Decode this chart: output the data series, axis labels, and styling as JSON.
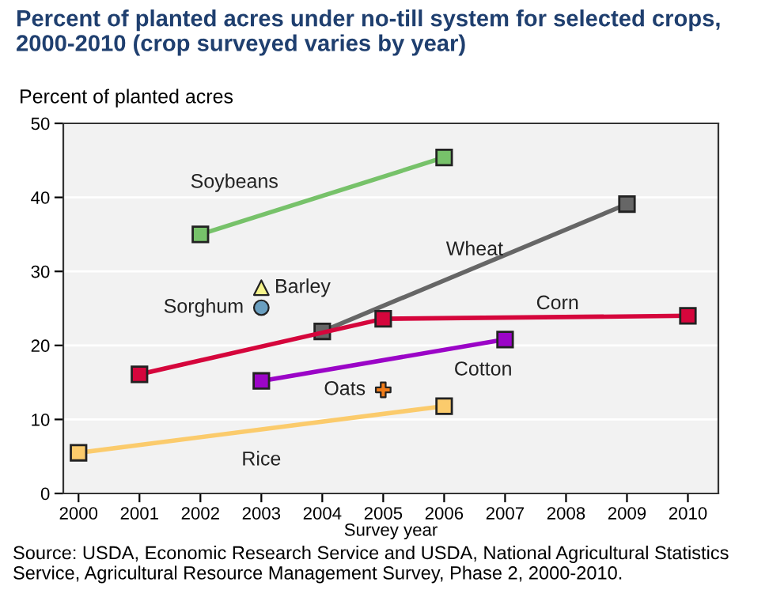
{
  "chart_data": {
    "type": "line",
    "title": "Percent of planted acres under no-till system for selected crops, 2000-2010 (crop surveyed varies by year)",
    "ylabel": "Percent of planted acres",
    "xlabel": "Survey year",
    "xlim": [
      1999.75,
      2010.5
    ],
    "xticks": [
      2000,
      2001,
      2002,
      2003,
      2004,
      2005,
      2006,
      2007,
      2008,
      2009,
      2010
    ],
    "ylim": [
      0,
      50
    ],
    "yticks": [
      0,
      10,
      20,
      30,
      40,
      50
    ],
    "grid": "y",
    "marker": "square",
    "legend": false,
    "series": [
      {
        "name": "Soybeans",
        "color": "#77c26a",
        "x": [
          2002,
          2006
        ],
        "values": [
          35.0,
          45.4
        ]
      },
      {
        "name": "Wheat",
        "color": "#666666",
        "x": [
          2004,
          2009
        ],
        "values": [
          21.9,
          39.1
        ]
      },
      {
        "name": "Corn",
        "color": "#d5063c",
        "x": [
          2001,
          2005,
          2010
        ],
        "values": [
          16.1,
          23.6,
          24.0
        ]
      },
      {
        "name": "Cotton",
        "color": "#9b05c7",
        "x": [
          2003,
          2007
        ],
        "values": [
          15.2,
          20.8
        ]
      },
      {
        "name": "Rice",
        "color": "#fbcb6c",
        "x": [
          2000,
          2006
        ],
        "values": [
          5.5,
          11.8
        ]
      },
      {
        "name": "Barley",
        "type": "scatter",
        "marker": "triangle",
        "color": "#f6f48c",
        "x": [
          2003
        ],
        "values": [
          27.8
        ]
      },
      {
        "name": "Sorghum",
        "type": "scatter",
        "marker": "circle",
        "color": "#6a9fc0",
        "x": [
          2003
        ],
        "values": [
          25.1
        ]
      },
      {
        "name": "Oats",
        "type": "scatter",
        "marker": "cross",
        "color": "#f07c1a",
        "x": [
          2005
        ],
        "values": [
          14.0
        ]
      }
    ],
    "annotations": [
      "Source: USDA, Economic Research Service and USDA, National Agricultural Statistics Service, Agricultural Resource Management Survey, Phase 2, 2000-2010."
    ]
  }
}
